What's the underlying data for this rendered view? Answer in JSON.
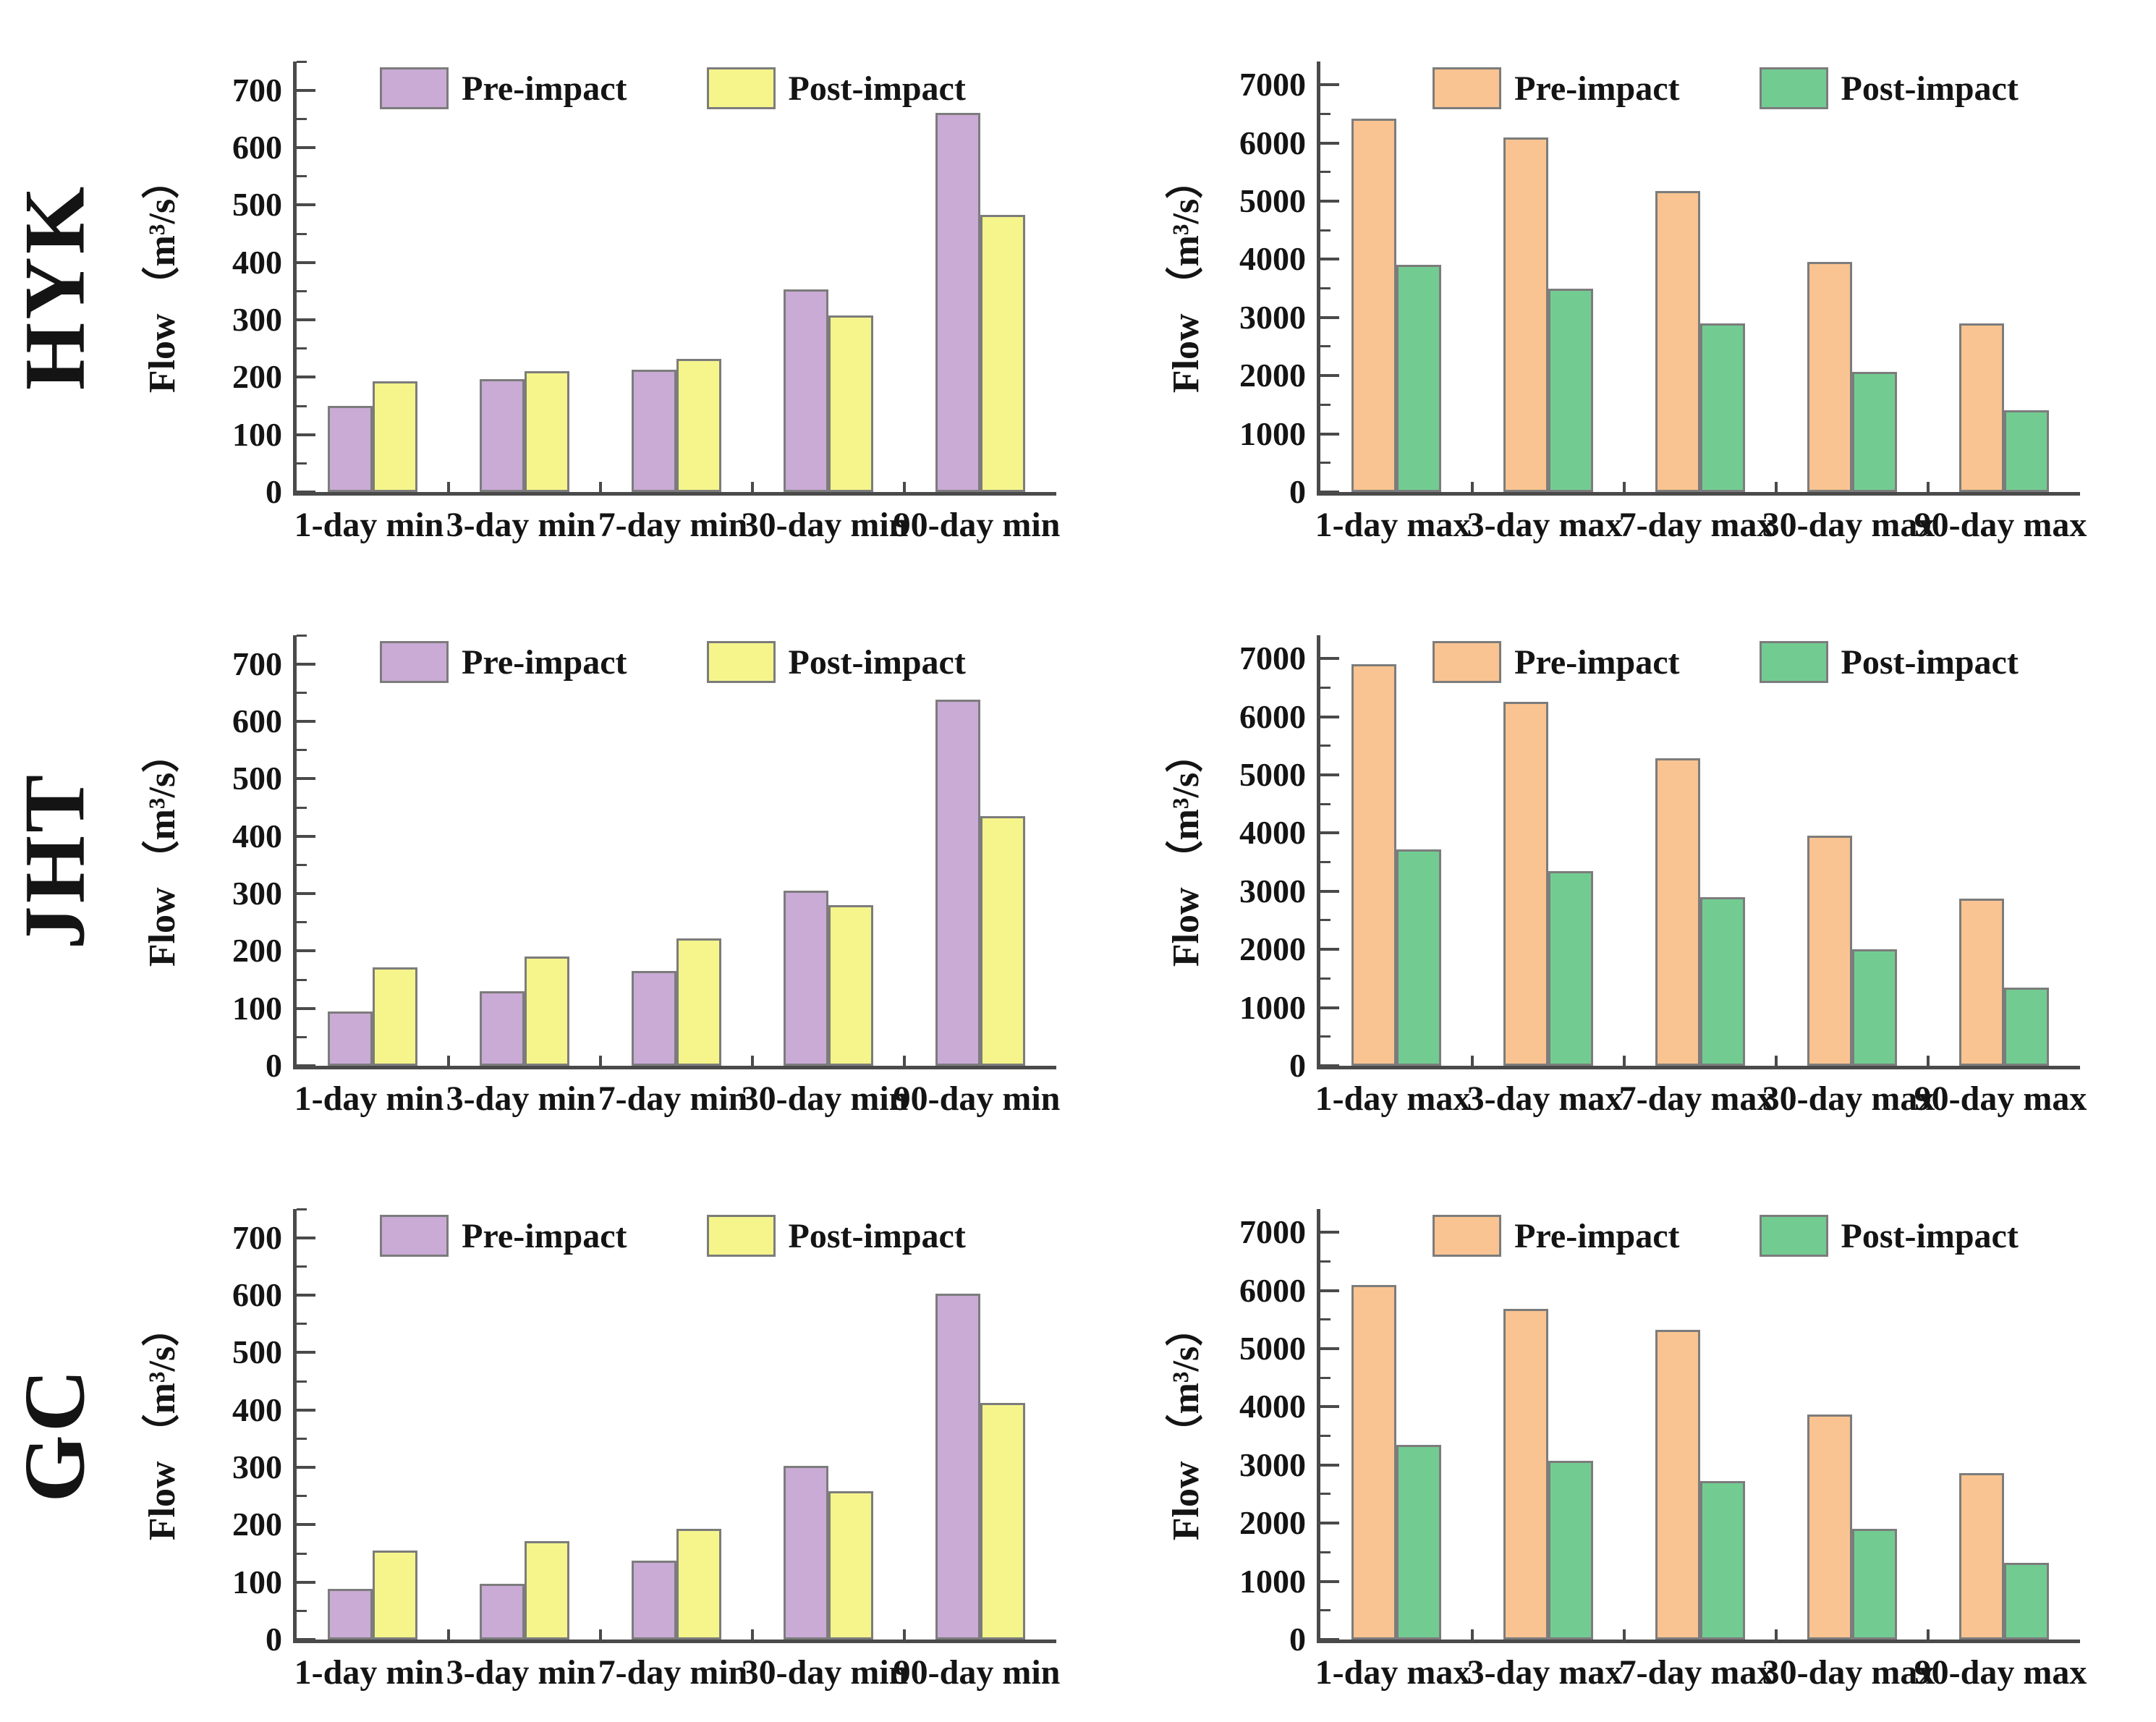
{
  "page": {
    "background": "#ffffff"
  },
  "colors": {
    "axis": "#4a4a4a",
    "text": "#141414",
    "bar_border": "#7C7C7C",
    "pre_impact_min": "#C9ABD5",
    "post_impact_min": "#F5F58C",
    "pre_impact_max": "#F9C491",
    "post_impact_max": "#72CC92"
  },
  "legend": {
    "pre_label": "Pre-impact",
    "post_label": "Post-impact"
  },
  "rows": [
    {
      "label": "HYK"
    },
    {
      "label": "JHT"
    },
    {
      "label": "GC"
    }
  ],
  "chart_data": [
    {
      "type": "bar",
      "station": "HYK",
      "categories": [
        "1-day min",
        "3-day min",
        "7-day min",
        "30-day min",
        "90-day min"
      ],
      "series": [
        {
          "name": "Pre-impact",
          "fill": "#C9ABD5",
          "border": "#7C7C7C",
          "values": [
            150,
            197,
            213,
            353,
            660
          ]
        },
        {
          "name": "Post-impact",
          "fill": "#F5F58C",
          "border": "#7C7C7C",
          "values": [
            193,
            210,
            232,
            307,
            483
          ]
        }
      ],
      "xlabel": "",
      "ylabel": "Flow （m³/s）",
      "ylim": [
        0,
        700
      ],
      "ytick_step": 100,
      "minor_tick_step": 50,
      "scale_max": 750,
      "grid": false,
      "legend_position": "top-center"
    },
    {
      "type": "bar",
      "station": "HYK",
      "categories": [
        "1-day max",
        "3-day max",
        "7-day max",
        "30-day max",
        "90-day max"
      ],
      "series": [
        {
          "name": "Pre-impact",
          "fill": "#F9C491",
          "border": "#7C7C7C",
          "values": [
            6420,
            6100,
            5180,
            3950,
            2900
          ]
        },
        {
          "name": "Post-impact",
          "fill": "#72CC92",
          "border": "#7C7C7C",
          "values": [
            3900,
            3500,
            2900,
            2060,
            1400
          ]
        }
      ],
      "xlabel": "",
      "ylabel": "Flow （m³/s）",
      "ylim": [
        0,
        7000
      ],
      "ytick_step": 1000,
      "minor_tick_step": 500,
      "scale_max": 7400,
      "grid": false,
      "legend_position": "top-center"
    },
    {
      "type": "bar",
      "station": "JHT",
      "categories": [
        "1-day min",
        "3-day min",
        "7-day min",
        "30-day min",
        "90-day min"
      ],
      "series": [
        {
          "name": "Pre-impact",
          "fill": "#C9ABD5",
          "border": "#7C7C7C",
          "values": [
            95,
            130,
            165,
            305,
            638
          ]
        },
        {
          "name": "Post-impact",
          "fill": "#F5F58C",
          "border": "#7C7C7C",
          "values": [
            172,
            190,
            222,
            280,
            435
          ]
        }
      ],
      "xlabel": "",
      "ylabel": "Flow （m³/s）",
      "ylim": [
        0,
        700
      ],
      "ytick_step": 100,
      "minor_tick_step": 50,
      "scale_max": 750,
      "grid": false,
      "legend_position": "top-center"
    },
    {
      "type": "bar",
      "station": "JHT",
      "categories": [
        "1-day max",
        "3-day max",
        "7-day max",
        "30-day max",
        "90-day max"
      ],
      "series": [
        {
          "name": "Pre-impact",
          "fill": "#F9C491",
          "border": "#7C7C7C",
          "values": [
            6900,
            6250,
            5280,
            3950,
            2870
          ]
        },
        {
          "name": "Post-impact",
          "fill": "#72CC92",
          "border": "#7C7C7C",
          "values": [
            3720,
            3340,
            2900,
            2000,
            1340
          ]
        }
      ],
      "xlabel": "",
      "ylabel": "Flow （m³/s）",
      "ylim": [
        0,
        7000
      ],
      "ytick_step": 1000,
      "minor_tick_step": 500,
      "scale_max": 7400,
      "grid": false,
      "legend_position": "top-center"
    },
    {
      "type": "bar",
      "station": "GC",
      "categories": [
        "1-day min",
        "3-day min",
        "7-day min",
        "30-day min",
        "90-day min"
      ],
      "series": [
        {
          "name": "Pre-impact",
          "fill": "#C9ABD5",
          "border": "#7C7C7C",
          "values": [
            88,
            97,
            138,
            302,
            603
          ]
        },
        {
          "name": "Post-impact",
          "fill": "#F5F58C",
          "border": "#7C7C7C",
          "values": [
            155,
            172,
            193,
            258,
            412
          ]
        }
      ],
      "xlabel": "",
      "ylabel": "Flow （m³/s）",
      "ylim": [
        0,
        700
      ],
      "ytick_step": 100,
      "minor_tick_step": 50,
      "scale_max": 750,
      "grid": false,
      "legend_position": "top-center"
    },
    {
      "type": "bar",
      "station": "GC",
      "categories": [
        "1-day max",
        "3-day max",
        "7-day max",
        "30-day max",
        "90-day max"
      ],
      "series": [
        {
          "name": "Pre-impact",
          "fill": "#F9C491",
          "border": "#7C7C7C",
          "values": [
            6100,
            5680,
            5320,
            3870,
            2860
          ]
        },
        {
          "name": "Post-impact",
          "fill": "#72CC92",
          "border": "#7C7C7C",
          "values": [
            3350,
            3070,
            2720,
            1900,
            1320
          ]
        }
      ],
      "xlabel": "",
      "ylabel": "Flow （m³/s）",
      "ylim": [
        0,
        7000
      ],
      "ytick_step": 1000,
      "minor_tick_step": 500,
      "scale_max": 7400,
      "grid": false,
      "legend_position": "top-center"
    }
  ]
}
